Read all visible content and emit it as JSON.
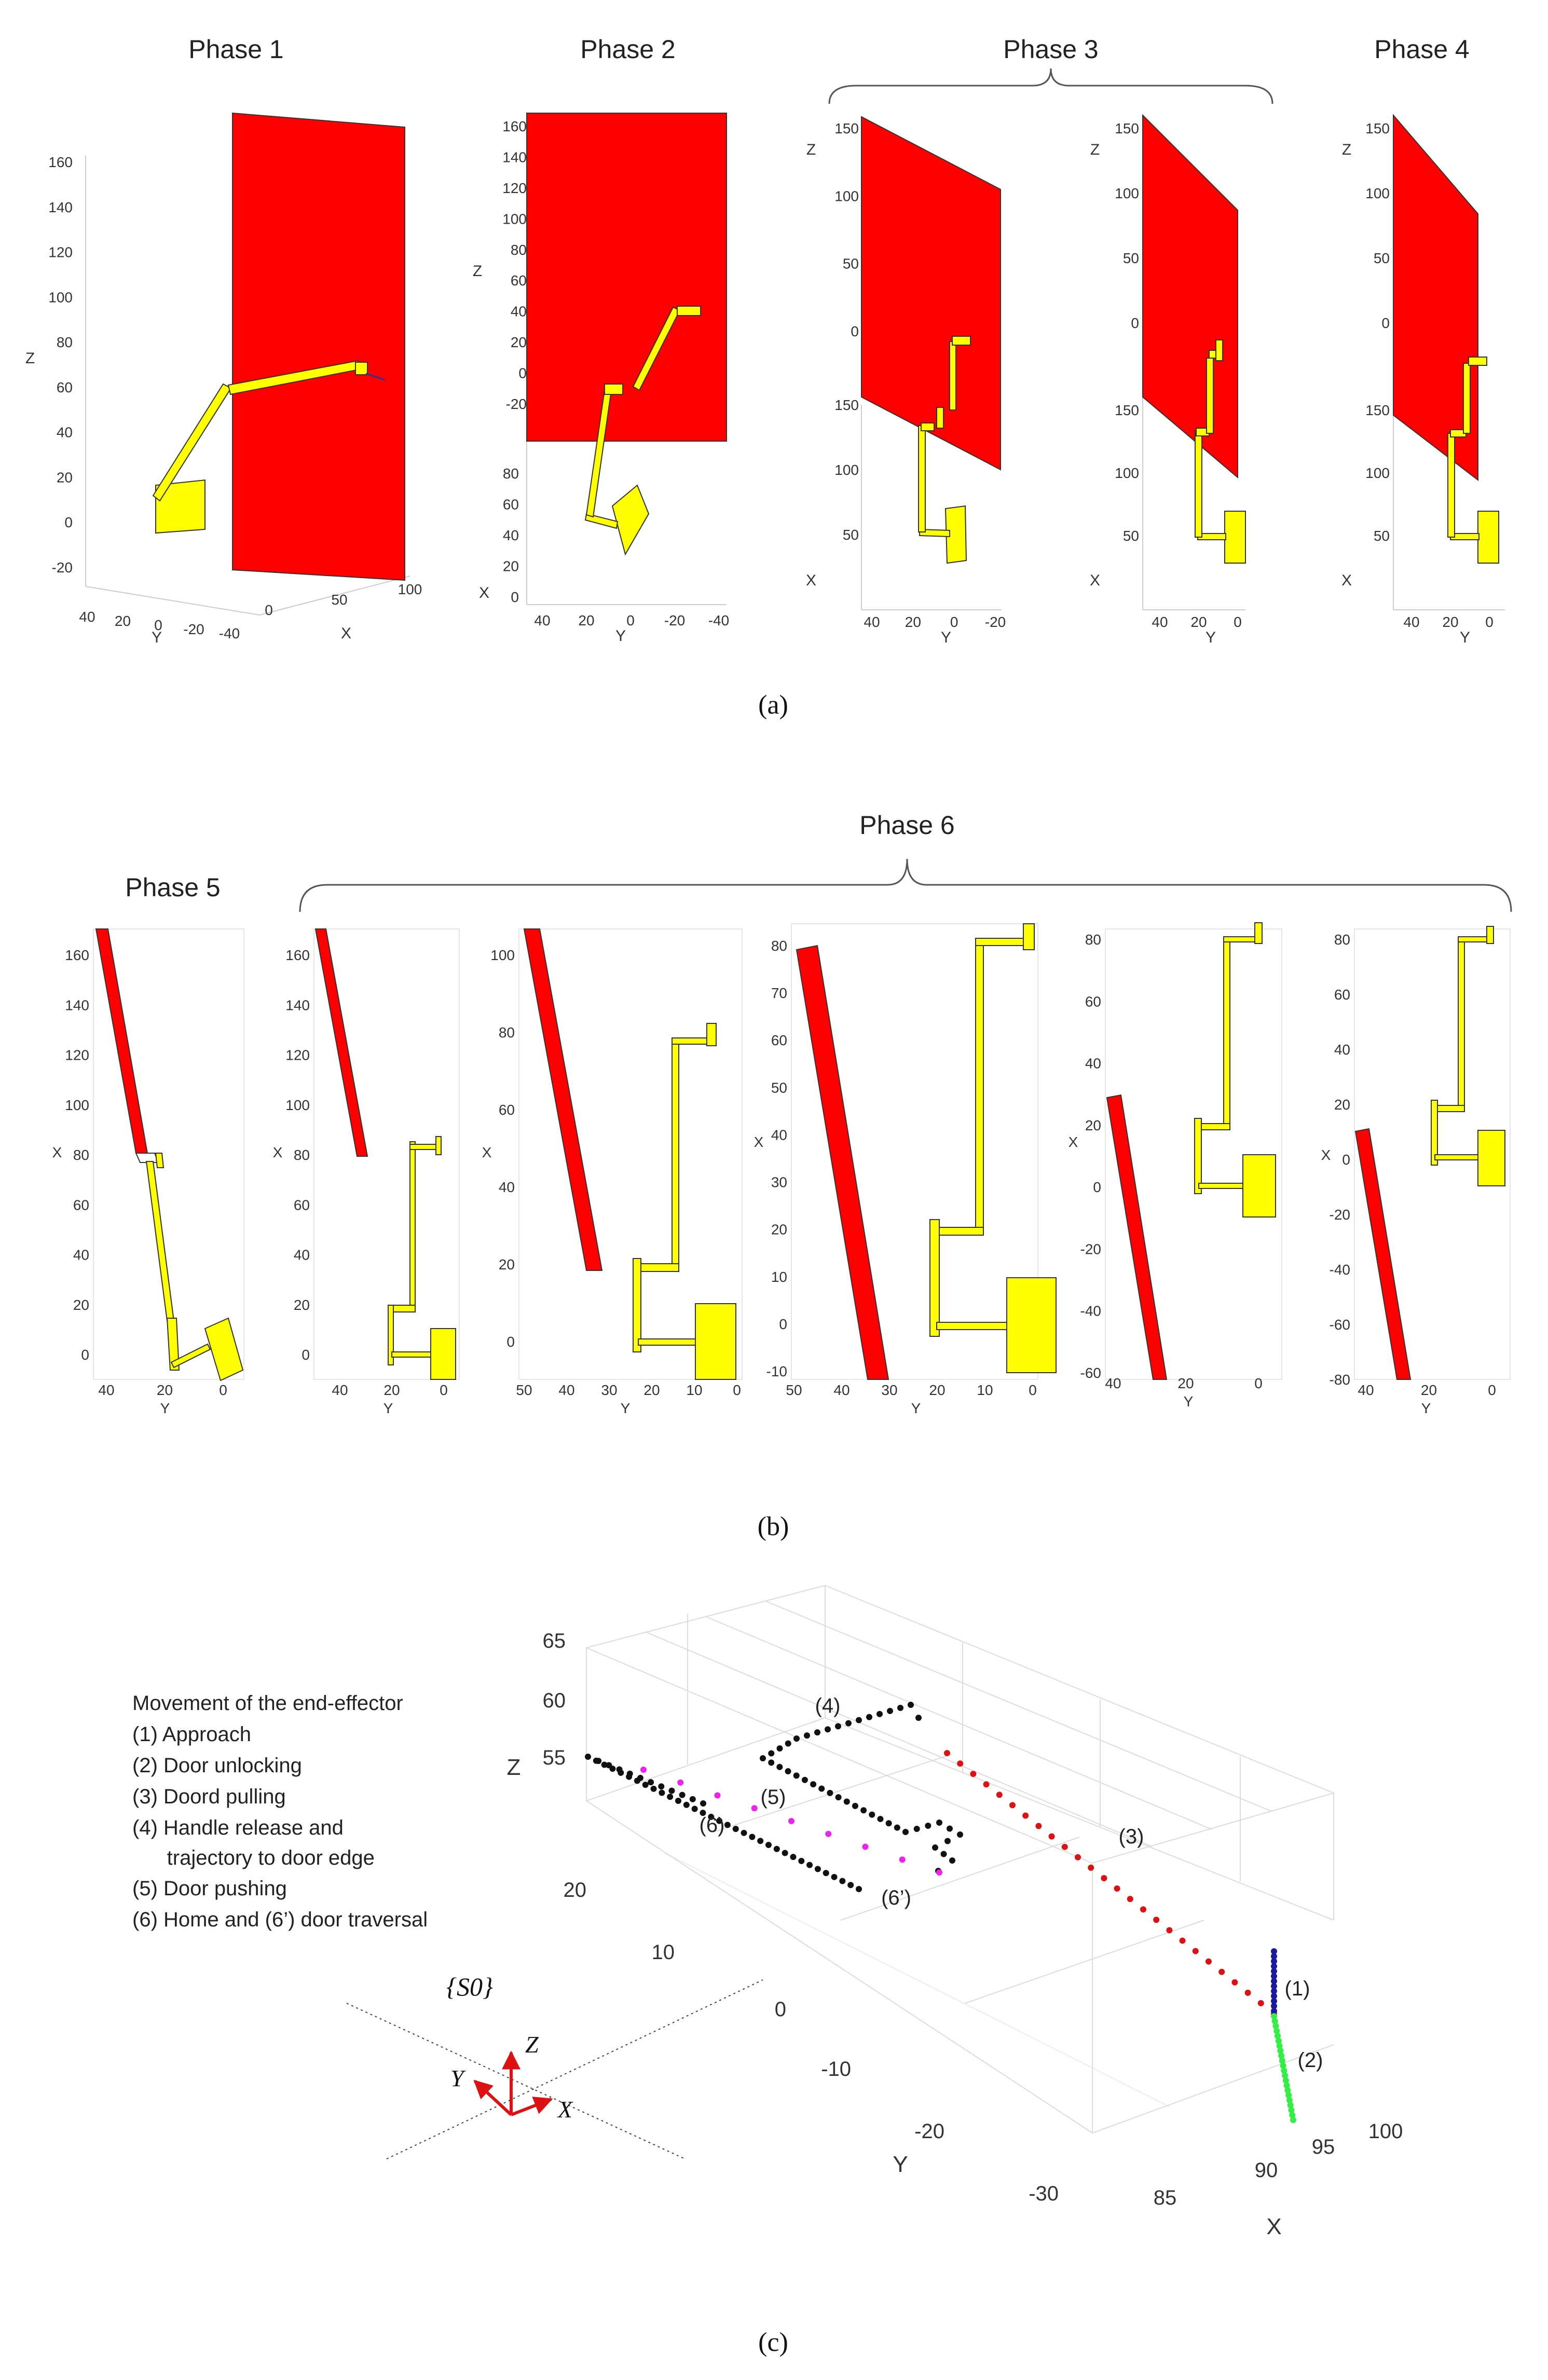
{
  "phases": {
    "p1": "Phase 1",
    "p2": "Phase 2",
    "p3": "Phase 3",
    "p4": "Phase 4",
    "p5": "Phase 5",
    "p6": "Phase 6"
  },
  "captions": {
    "a": "(a)",
    "b": "(b)",
    "c": "(c)"
  },
  "colors": {
    "door": "#ff0000",
    "robot": "#ffff00",
    "outline": "#333333",
    "approach": "#1a1aa0",
    "unlocking": "#33ee44",
    "pulling": "#dd1111",
    "release": "#111111",
    "pushing": "#ee22ee"
  },
  "legend": {
    "title": "Movement of the end-effector",
    "items": [
      {
        "label": "(1)  Approach"
      },
      {
        "label": "(2)  Door unlocking"
      },
      {
        "label": "(3)  Doord pulling"
      },
      {
        "label": "(4)  Handle release and"
      },
      {
        "label": "      trajectory to door edge"
      },
      {
        "label": "(5)  Door pushing"
      },
      {
        "label": "(6)  Home and (6’) door traversal"
      }
    ]
  },
  "frame": {
    "name": "{S0}",
    "x": "X",
    "y": "Y",
    "z": "Z"
  },
  "panel_a": [
    {
      "id": "a1",
      "phase": "Phase 1",
      "axes": {
        "z_label": "Z",
        "z_ticks": [
          "160",
          "140",
          "120",
          "100",
          "80",
          "60",
          "40",
          "20",
          "0",
          "-20"
        ],
        "y_label": "Y",
        "y_ticks": [
          "40",
          "20",
          "0",
          "-20",
          "-40"
        ],
        "x_label": "X",
        "x_ticks": [
          "0",
          "50",
          "100"
        ]
      }
    },
    {
      "id": "a2",
      "phase": "Phase 2",
      "axes": {
        "z_label": "Z",
        "z_ticks": [
          "160",
          "140",
          "120",
          "100",
          "80",
          "60",
          "40",
          "20",
          "0",
          "-20"
        ],
        "x_label": "X",
        "x_ticks": [
          "80",
          "60",
          "40",
          "20",
          "0"
        ],
        "y_label": "Y",
        "y_ticks": [
          "40",
          "20",
          "0",
          "-20",
          "-40"
        ]
      }
    },
    {
      "id": "a3",
      "phase": "Phase 3",
      "axes": {
        "z_label": "Z",
        "z_ticks": [
          "150",
          "100",
          "50",
          "0"
        ],
        "x_label": "X",
        "x_ticks": [
          "150",
          "100",
          "50"
        ],
        "y_label": "Y",
        "y_ticks": [
          "40",
          "20",
          "0",
          "-20"
        ]
      }
    },
    {
      "id": "a4",
      "phase": "",
      "axes": {
        "z_label": "Z",
        "z_ticks": [
          "150",
          "100",
          "50",
          "0"
        ],
        "x_label": "X",
        "x_ticks": [
          "150",
          "100",
          "50"
        ],
        "y_label": "Y",
        "y_ticks": [
          "40",
          "20",
          "0"
        ]
      }
    },
    {
      "id": "a5",
      "phase": "Phase 4",
      "axes": {
        "z_label": "Z",
        "z_ticks": [
          "150",
          "100",
          "50",
          "0"
        ],
        "x_label": "X",
        "x_ticks": [
          "150",
          "100",
          "50"
        ],
        "y_label": "Y",
        "y_ticks": [
          "40",
          "20",
          "0"
        ]
      }
    }
  ],
  "panel_b": [
    {
      "id": "b1",
      "x_label": "X",
      "x_ticks": [
        "160",
        "140",
        "120",
        "100",
        "80",
        "60",
        "40",
        "20",
        "0"
      ],
      "y_label": "Y",
      "y_ticks": [
        "40",
        "20",
        "0"
      ]
    },
    {
      "id": "b2",
      "x_label": "X",
      "x_ticks": [
        "160",
        "140",
        "120",
        "100",
        "80",
        "60",
        "40",
        "20",
        "0"
      ],
      "y_label": "Y",
      "y_ticks": [
        "40",
        "20",
        "0"
      ]
    },
    {
      "id": "b3",
      "x_label": "X",
      "x_ticks": [
        "100",
        "80",
        "60",
        "40",
        "20",
        "0"
      ],
      "y_label": "Y",
      "y_ticks": [
        "50",
        "40",
        "30",
        "20",
        "10",
        "0"
      ]
    },
    {
      "id": "b4",
      "x_label": "X",
      "x_ticks": [
        "80",
        "70",
        "60",
        "50",
        "40",
        "30",
        "20",
        "10",
        "0",
        "-10"
      ],
      "y_label": "Y",
      "y_ticks": [
        "50",
        "40",
        "30",
        "20",
        "10",
        "0"
      ]
    },
    {
      "id": "b5",
      "x_label": "X",
      "x_ticks": [
        "80",
        "60",
        "40",
        "20",
        "0",
        "-20",
        "-40",
        "-60"
      ],
      "y_label": "Y",
      "y_ticks": [
        "40",
        "20",
        "0"
      ]
    },
    {
      "id": "b6",
      "x_label": "X",
      "x_ticks": [
        "80",
        "60",
        "40",
        "20",
        "0",
        "-20",
        "-40",
        "-60",
        "-80"
      ],
      "y_label": "Y",
      "y_ticks": [
        "40",
        "20",
        "0"
      ]
    }
  ],
  "panel_c": {
    "z_label": "Z",
    "z_ticks": [
      "65",
      "60",
      "55"
    ],
    "y_label": "Y",
    "y_ticks": [
      "20",
      "10",
      "0",
      "-10",
      "-20",
      "-30"
    ],
    "x_label": "X",
    "x_ticks": [
      "85",
      "90",
      "95",
      "100"
    ],
    "annotations": [
      "(1)",
      "(2)",
      "(3)",
      "(4)",
      "(5)",
      "(6)",
      "(6’)"
    ]
  }
}
